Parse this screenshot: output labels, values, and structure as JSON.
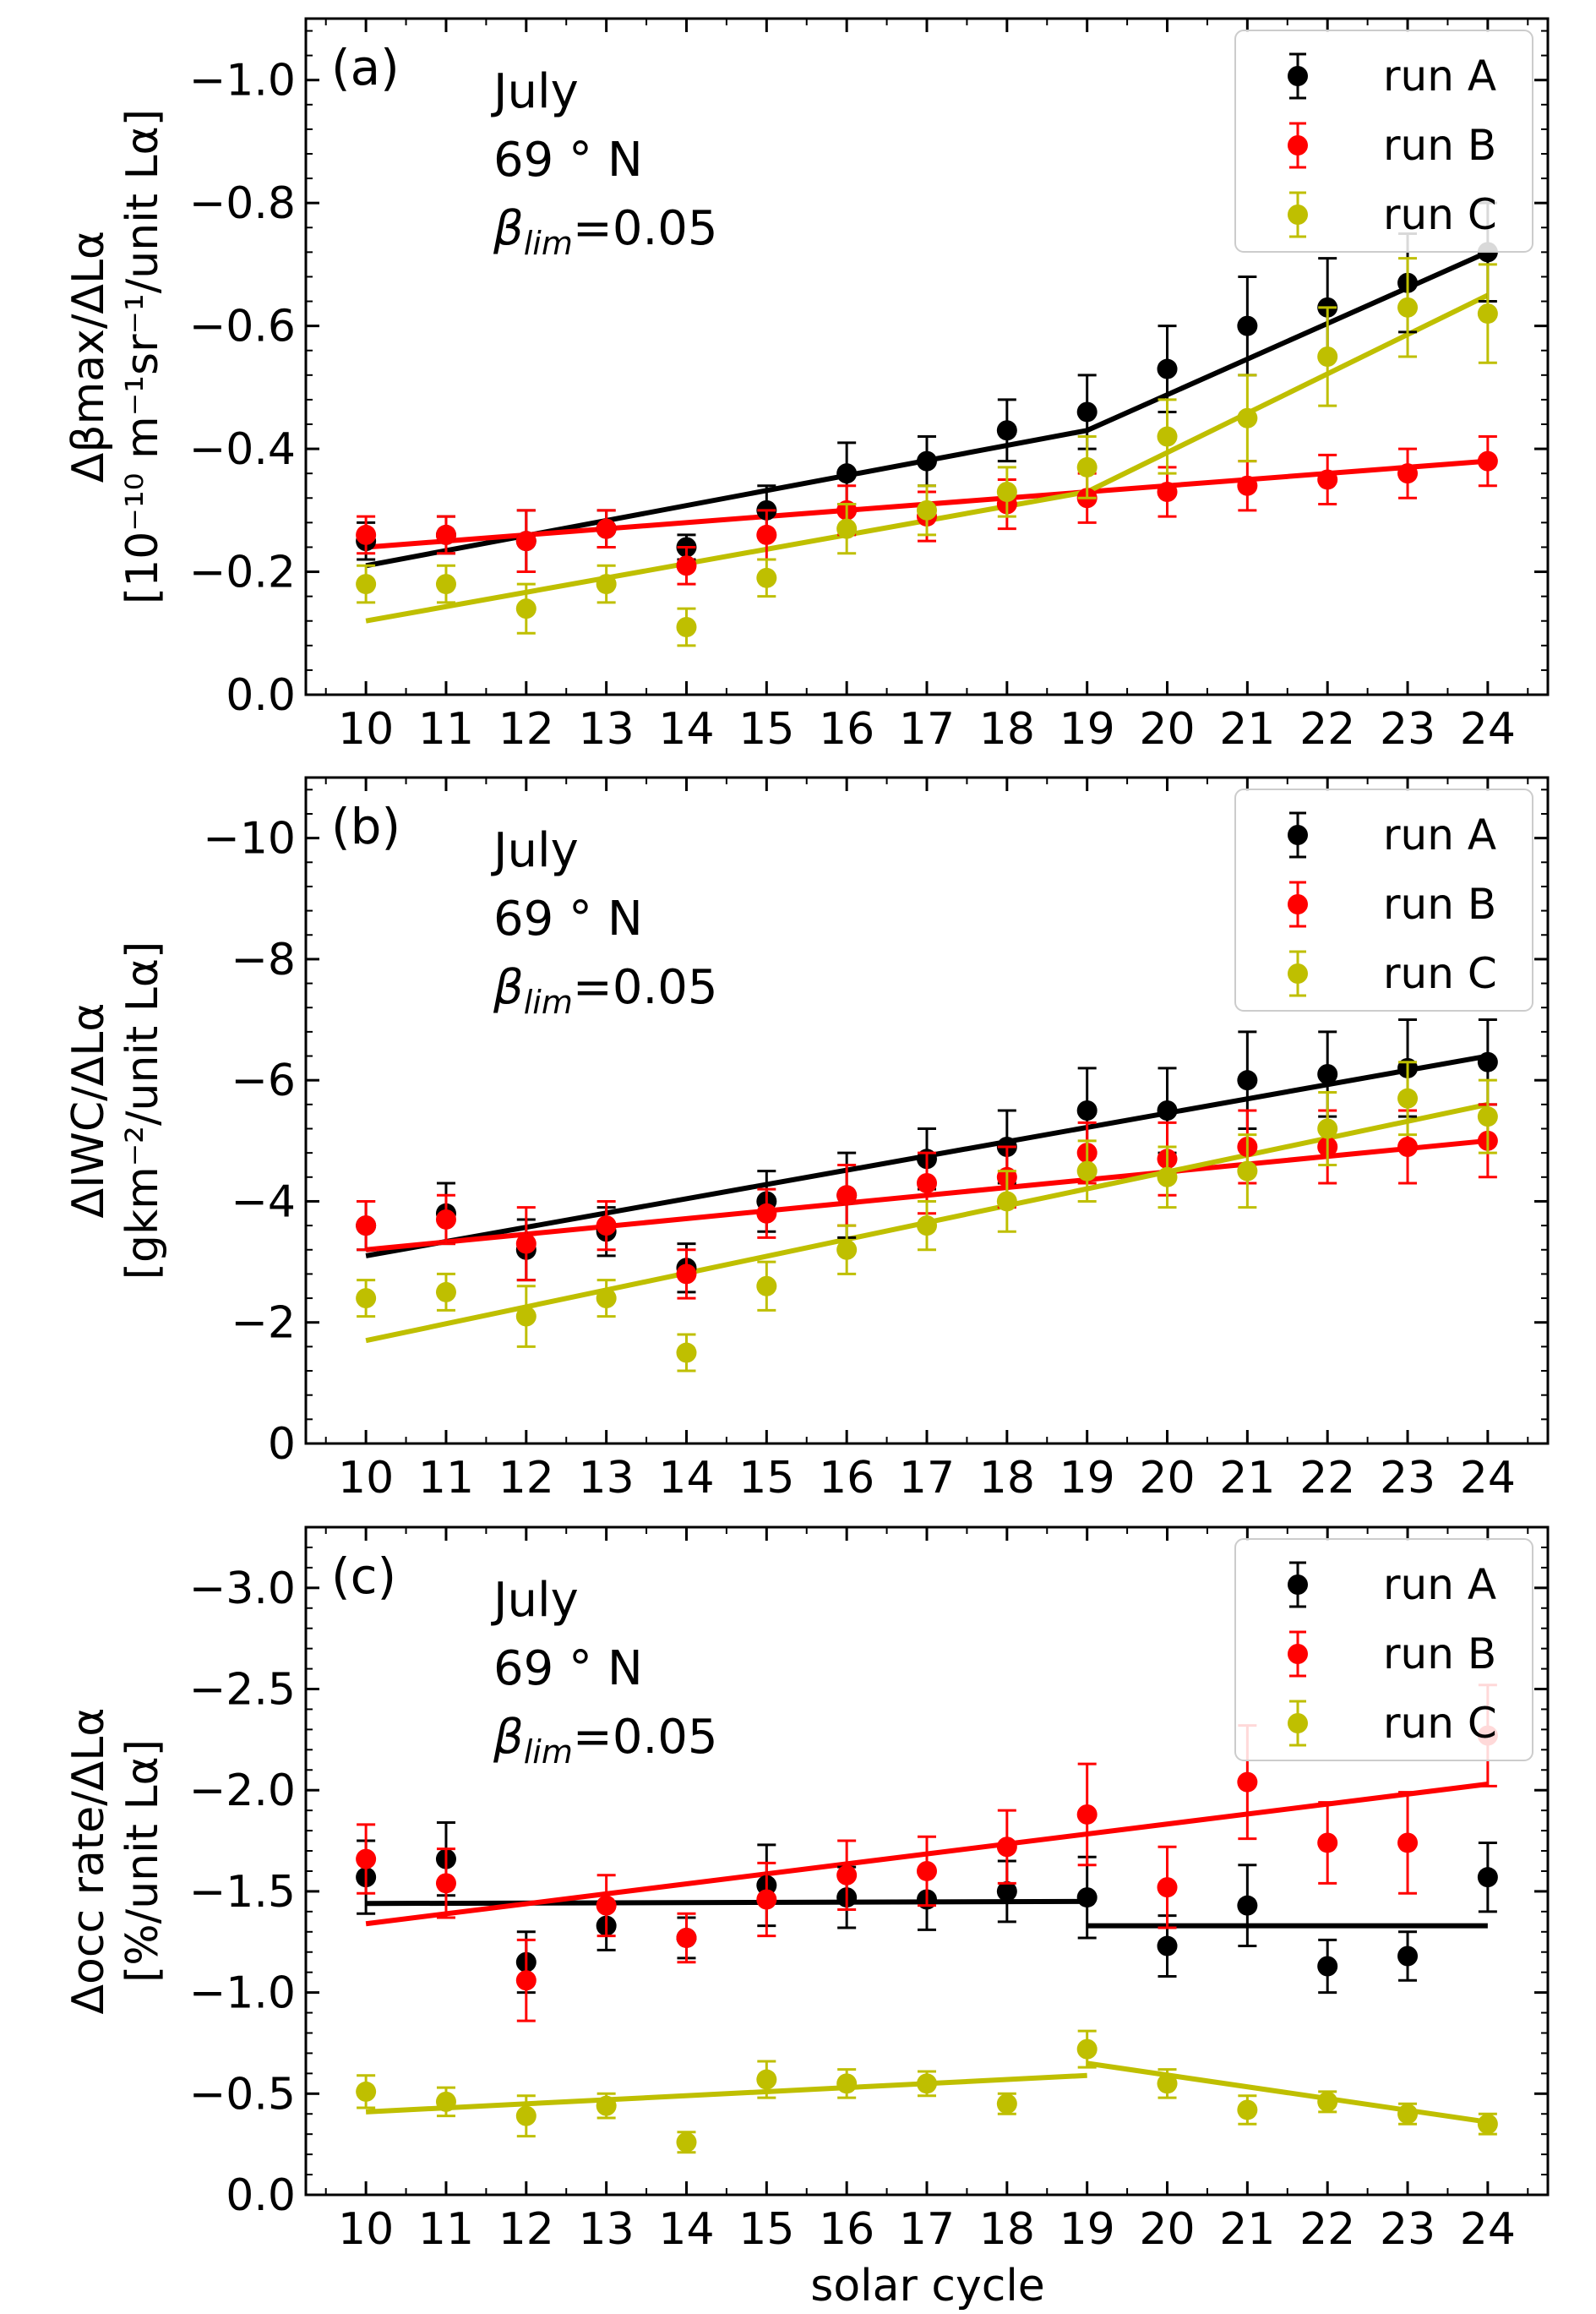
{
  "figure": {
    "xlabel": "solar cycle",
    "x": [
      10,
      11,
      12,
      13,
      14,
      15,
      16,
      17,
      18,
      19,
      20,
      21,
      22,
      23,
      24
    ],
    "colors": {
      "run A": "#000000",
      "run B": "#ff0000",
      "run C": "#bfbf00"
    }
  },
  "chart_data": [
    {
      "type": "scatter",
      "panel_label": "(a)",
      "annotation": {
        "month": "July",
        "lat": "69 ° N",
        "beta_sym": "β",
        "beta_sub": "lim",
        "beta_val": "=0.05"
      },
      "ylabel_line1": "Δβmax/ΔLα",
      "ylabel_line2": "[10⁻¹⁰ m⁻¹sr⁻¹/unit Lα]",
      "ylim": [
        0,
        -1.1
      ],
      "yticks": [
        0,
        -0.2,
        -0.4,
        -0.6,
        -0.8,
        -1.0
      ],
      "ytick_labels": [
        "0.0",
        "−0.2",
        "−0.4",
        "−0.6",
        "−0.8",
        "−1.0"
      ],
      "x": [
        10,
        11,
        12,
        13,
        14,
        15,
        16,
        17,
        18,
        19,
        20,
        21,
        22,
        23,
        24
      ],
      "legend": "top-right",
      "series": [
        {
          "name": "run A",
          "values": [
            -0.25,
            -0.26,
            -0.25,
            -0.27,
            -0.24,
            -0.3,
            -0.36,
            -0.38,
            -0.43,
            -0.46,
            -0.53,
            -0.6,
            -0.63,
            -0.67,
            -0.72
          ],
          "err": [
            0.03,
            0.03,
            0.05,
            0.03,
            0.02,
            0.04,
            0.05,
            0.04,
            0.05,
            0.06,
            0.07,
            0.08,
            0.08,
            0.08,
            0.08
          ],
          "fit": [
            [
              [
                10,
                -0.21
              ],
              [
                19,
                -0.43
              ]
            ],
            [
              [
                19,
                -0.43
              ],
              [
                24,
                -0.72
              ]
            ]
          ]
        },
        {
          "name": "run B",
          "values": [
            -0.26,
            -0.26,
            -0.25,
            -0.27,
            -0.21,
            -0.26,
            -0.3,
            -0.29,
            -0.31,
            -0.32,
            -0.33,
            -0.34,
            -0.35,
            -0.36,
            -0.38
          ],
          "err": [
            0.03,
            0.03,
            0.05,
            0.03,
            0.03,
            0.04,
            0.04,
            0.04,
            0.04,
            0.04,
            0.04,
            0.04,
            0.04,
            0.04,
            0.04
          ],
          "fit": [
            [
              [
                10,
                -0.24
              ],
              [
                24,
                -0.38
              ]
            ]
          ]
        },
        {
          "name": "run C",
          "values": [
            -0.18,
            -0.18,
            -0.14,
            -0.18,
            -0.11,
            -0.19,
            -0.27,
            -0.3,
            -0.33,
            -0.37,
            -0.42,
            -0.45,
            -0.55,
            -0.63,
            -0.62
          ],
          "err": [
            0.03,
            0.03,
            0.04,
            0.03,
            0.03,
            0.03,
            0.04,
            0.04,
            0.04,
            0.05,
            0.06,
            0.07,
            0.08,
            0.08,
            0.08
          ],
          "fit": [
            [
              [
                10,
                -0.12
              ],
              [
                19,
                -0.33
              ]
            ],
            [
              [
                19,
                -0.33
              ],
              [
                24,
                -0.65
              ]
            ]
          ]
        }
      ]
    },
    {
      "type": "scatter",
      "panel_label": "(b)",
      "annotation": {
        "month": "July",
        "lat": "69 ° N",
        "beta_sym": "β",
        "beta_sub": "lim",
        "beta_val": "=0.05"
      },
      "ylabel_line1": "ΔIWC/ΔLα",
      "ylabel_line2": "[gkm⁻²/unit Lα]",
      "ylim": [
        0,
        -11
      ],
      "yticks": [
        0,
        -2,
        -4,
        -6,
        -8,
        -10
      ],
      "ytick_labels": [
        "0",
        "−2",
        "−4",
        "−6",
        "−8",
        "−10"
      ],
      "x": [
        10,
        11,
        12,
        13,
        14,
        15,
        16,
        17,
        18,
        19,
        20,
        21,
        22,
        23,
        24
      ],
      "legend": "top-right",
      "series": [
        {
          "name": "run A",
          "values": [
            -3.6,
            -3.8,
            -3.2,
            -3.5,
            -2.9,
            -4.0,
            -4.1,
            -4.7,
            -4.9,
            -5.5,
            -5.5,
            -6.0,
            -6.1,
            -6.2,
            -6.3
          ],
          "err": [
            0.4,
            0.5,
            0.5,
            0.4,
            0.4,
            0.5,
            0.7,
            0.5,
            0.6,
            0.7,
            0.7,
            0.8,
            0.7,
            0.8,
            0.7
          ],
          "fit": [
            [
              [
                10,
                -3.1
              ],
              [
                24,
                -6.4
              ]
            ]
          ]
        },
        {
          "name": "run B",
          "values": [
            -3.6,
            -3.7,
            -3.3,
            -3.6,
            -2.8,
            -3.8,
            -4.1,
            -4.3,
            -4.4,
            -4.8,
            -4.7,
            -4.9,
            -4.9,
            -4.9,
            -5.0
          ],
          "err": [
            0.4,
            0.4,
            0.6,
            0.4,
            0.4,
            0.4,
            0.5,
            0.5,
            0.5,
            0.5,
            0.6,
            0.6,
            0.6,
            0.6,
            0.6
          ],
          "fit": [
            [
              [
                10,
                -3.2
              ],
              [
                24,
                -5.0
              ]
            ]
          ]
        },
        {
          "name": "run C",
          "values": [
            -2.4,
            -2.5,
            -2.1,
            -2.4,
            -1.5,
            -2.6,
            -3.2,
            -3.6,
            -4.0,
            -4.5,
            -4.4,
            -4.5,
            -5.2,
            -5.7,
            -5.4
          ],
          "err": [
            0.3,
            0.3,
            0.5,
            0.3,
            0.3,
            0.4,
            0.4,
            0.4,
            0.5,
            0.5,
            0.5,
            0.6,
            0.6,
            0.6,
            0.6
          ],
          "fit": [
            [
              [
                10,
                -1.7
              ],
              [
                24,
                -5.6
              ]
            ]
          ]
        }
      ]
    },
    {
      "type": "scatter",
      "panel_label": "(c)",
      "annotation": {
        "month": "July",
        "lat": "69 ° N",
        "beta_sym": "β",
        "beta_sub": "lim",
        "beta_val": "=0.05"
      },
      "ylabel_line1": "Δocc rate/ΔLα",
      "ylabel_line2": "[%/unit Lα]",
      "ylim": [
        0,
        -3.3
      ],
      "yticks": [
        0,
        -0.5,
        -1.0,
        -1.5,
        -2.0,
        -2.5,
        -3.0
      ],
      "ytick_labels": [
        "0.0",
        "−0.5",
        "−1.0",
        "−1.5",
        "−2.0",
        "−2.5",
        "−3.0"
      ],
      "x": [
        10,
        11,
        12,
        13,
        14,
        15,
        16,
        17,
        18,
        19,
        20,
        21,
        22,
        23,
        24
      ],
      "legend": "top-right",
      "series": [
        {
          "name": "run A",
          "values": [
            -1.57,
            -1.66,
            -1.15,
            -1.33,
            -1.27,
            -1.53,
            -1.47,
            -1.46,
            -1.5,
            -1.47,
            -1.23,
            -1.43,
            -1.13,
            -1.18,
            -1.57
          ],
          "err": [
            0.18,
            0.18,
            0.15,
            0.12,
            0.1,
            0.2,
            0.15,
            0.15,
            0.15,
            0.2,
            0.15,
            0.2,
            0.13,
            0.12,
            0.17
          ],
          "fit": [
            [
              [
                10,
                -1.44
              ],
              [
                19,
                -1.45
              ]
            ],
            [
              [
                19,
                -1.33
              ],
              [
                24,
                -1.33
              ]
            ]
          ]
        },
        {
          "name": "run B",
          "values": [
            -1.66,
            -1.54,
            -1.06,
            -1.43,
            -1.27,
            -1.46,
            -1.58,
            -1.6,
            -1.72,
            -1.88,
            -1.52,
            -2.04,
            -1.74,
            -1.74,
            -2.27
          ],
          "err": [
            0.17,
            0.17,
            0.2,
            0.15,
            0.12,
            0.18,
            0.17,
            0.17,
            0.18,
            0.25,
            0.2,
            0.28,
            0.2,
            0.25,
            0.25
          ],
          "fit": [
            [
              [
                10,
                -1.34
              ],
              [
                24,
                -2.03
              ]
            ]
          ]
        },
        {
          "name": "run C",
          "values": [
            -0.51,
            -0.46,
            -0.39,
            -0.44,
            -0.26,
            -0.57,
            -0.55,
            -0.55,
            -0.45,
            -0.72,
            -0.55,
            -0.42,
            -0.46,
            -0.4,
            -0.35
          ],
          "err": [
            0.08,
            0.07,
            0.1,
            0.06,
            0.05,
            0.09,
            0.07,
            0.06,
            0.05,
            0.09,
            0.07,
            0.07,
            0.05,
            0.05,
            0.05
          ],
          "fit": [
            [
              [
                10,
                -0.41
              ],
              [
                19,
                -0.59
              ]
            ],
            [
              [
                19,
                -0.65
              ],
              [
                24,
                -0.36
              ]
            ]
          ]
        }
      ]
    }
  ]
}
